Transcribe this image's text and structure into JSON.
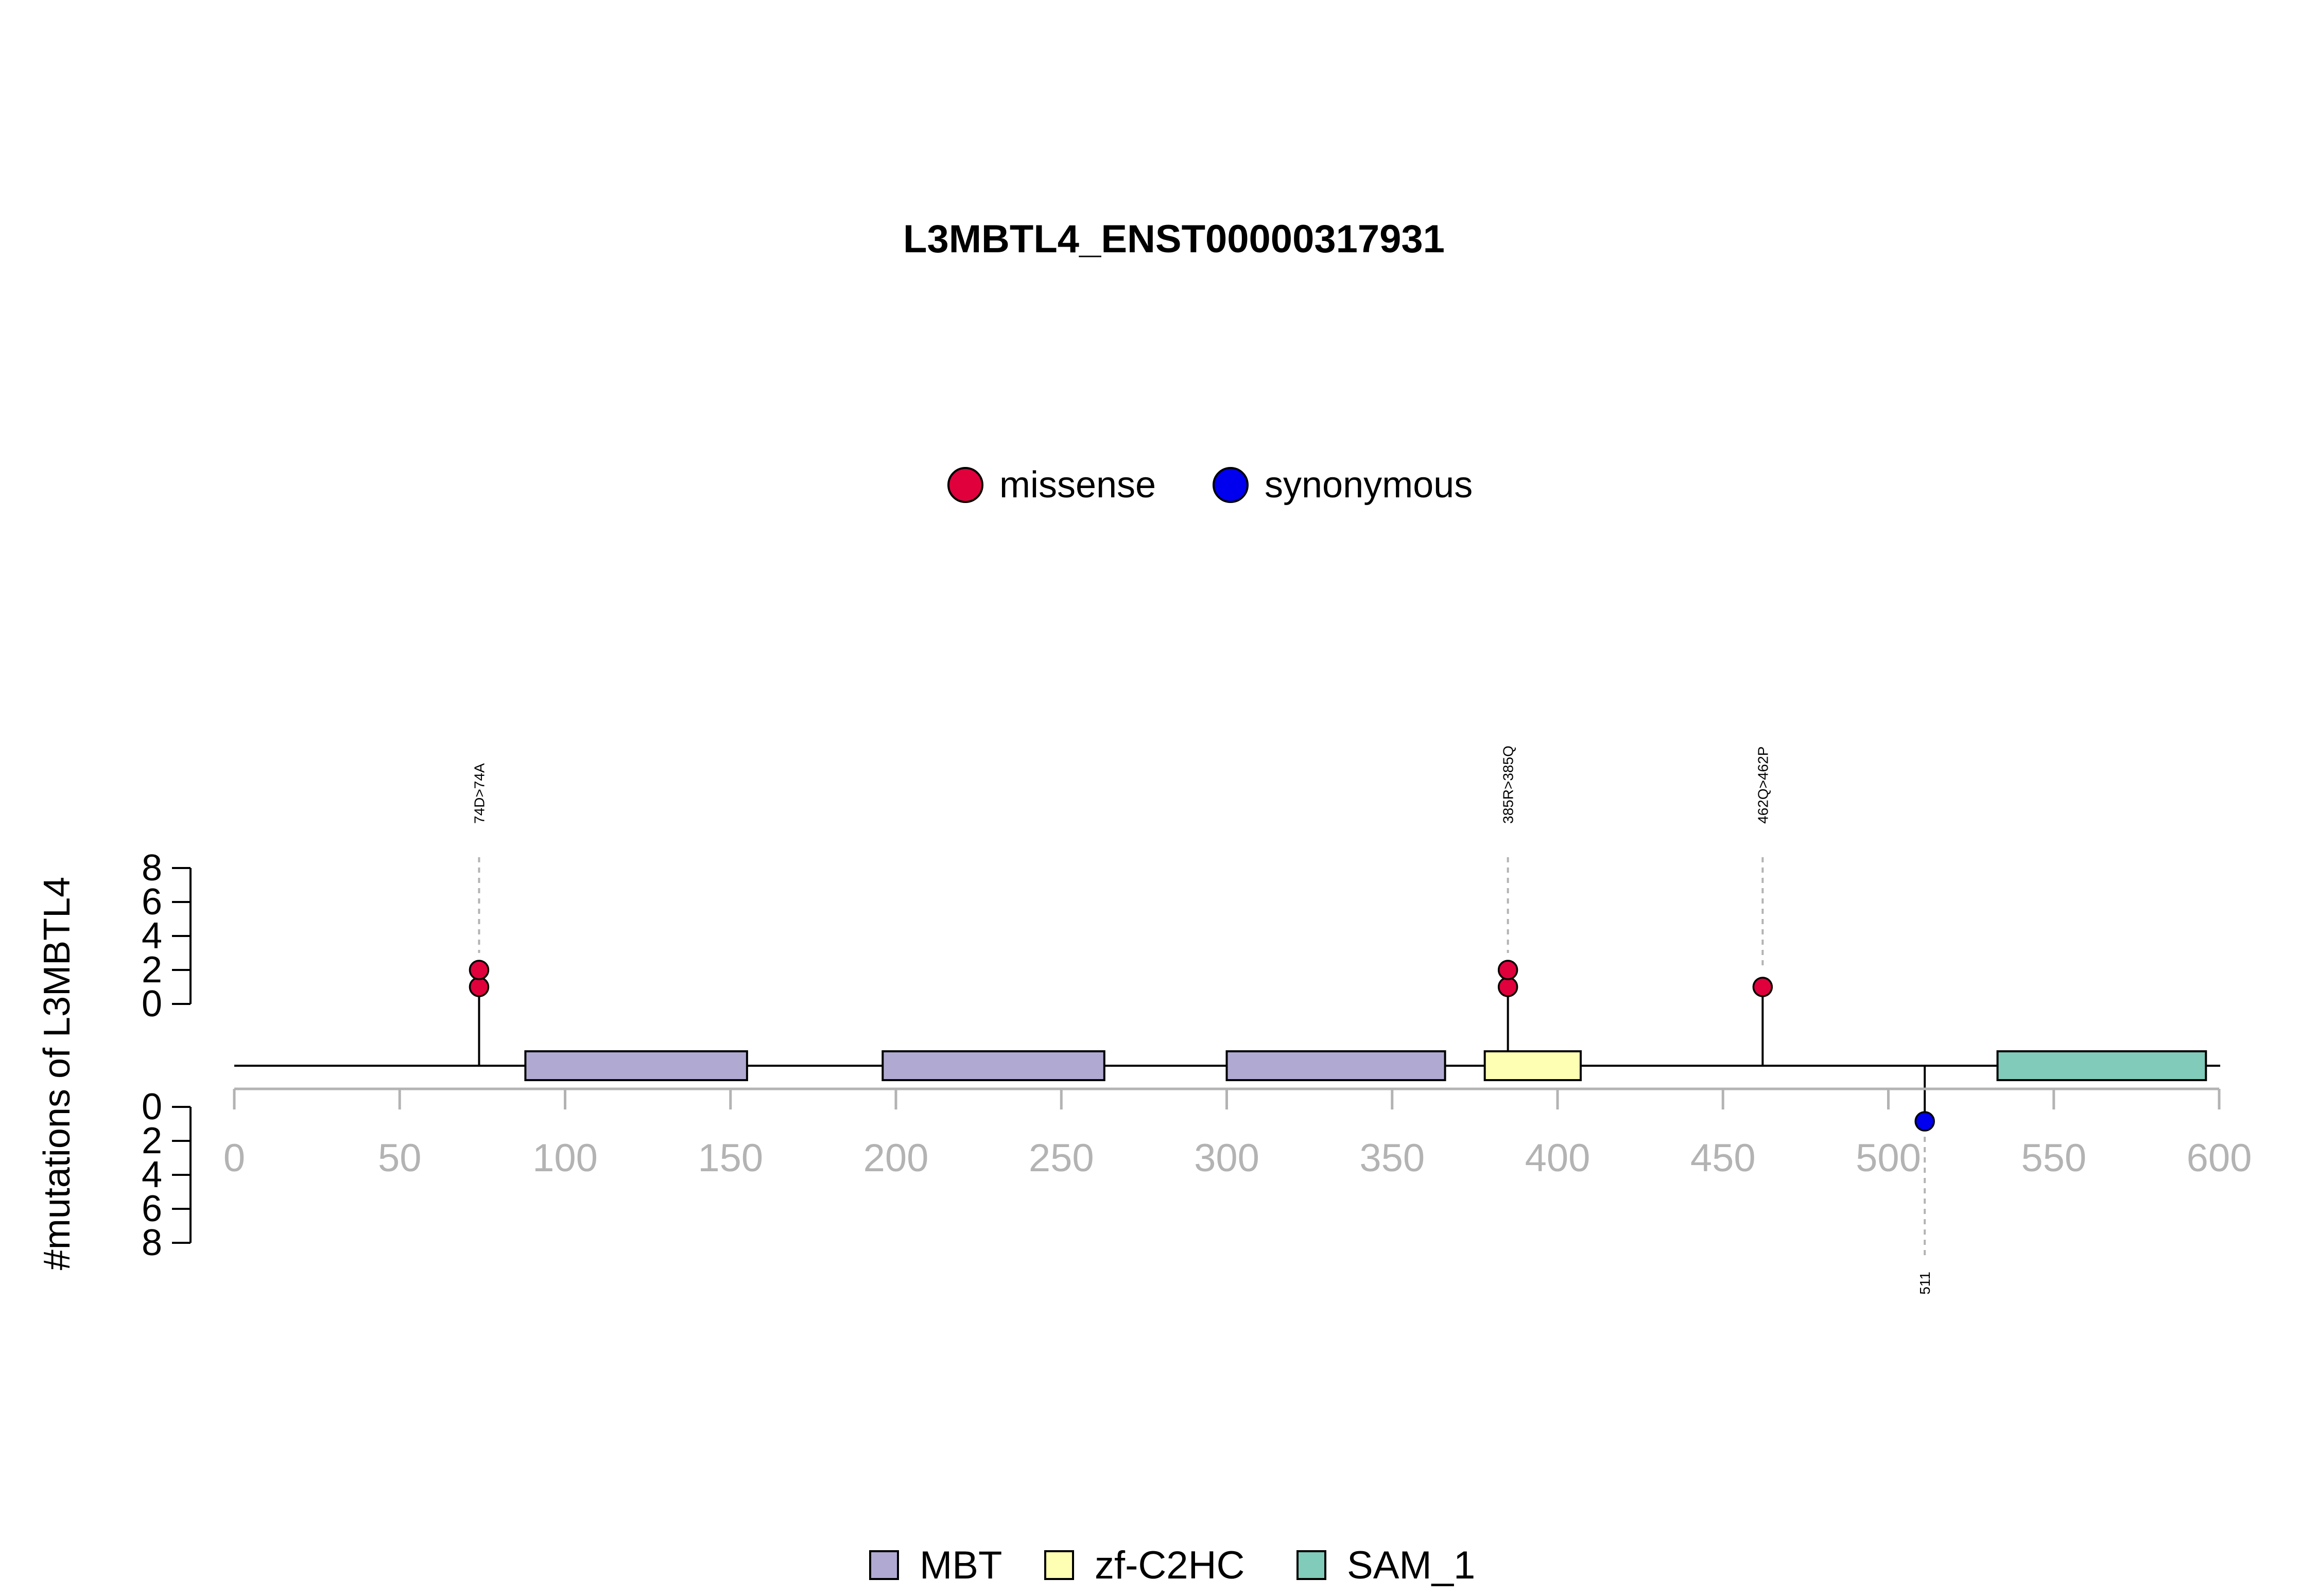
{
  "chart_data": {
    "type": "lollipop",
    "title": "L3MBTL4_ENST00000317931",
    "ylabel": "#mutations of L3MBTL4",
    "xlim": [
      0,
      600
    ],
    "x_ticks": [
      0,
      50,
      100,
      150,
      200,
      250,
      300,
      350,
      400,
      450,
      500,
      550,
      600
    ],
    "y_ticks_top": [
      0,
      2,
      4,
      6,
      8
    ],
    "y_ticks_bottom": [
      0,
      2,
      4,
      6,
      8
    ],
    "legend_top": [
      {
        "name": "missense",
        "color": "#e0003c"
      },
      {
        "name": "synonymous",
        "color": "#0000ee"
      }
    ],
    "legend_bottom": [
      {
        "name": "MBT",
        "color": "#b0aad2"
      },
      {
        "name": "zf-C2HC",
        "color": "#ffffb4"
      },
      {
        "name": "SAM_1",
        "color": "#80cbb9"
      }
    ],
    "protein_length": 600,
    "domains": [
      {
        "name": "MBT",
        "start": 88,
        "end": 155
      },
      {
        "name": "MBT",
        "start": 196,
        "end": 263
      },
      {
        "name": "MBT",
        "start": 300,
        "end": 366
      },
      {
        "name": "zf-C2HC",
        "start": 378,
        "end": 407
      },
      {
        "name": "SAM_1",
        "start": 533,
        "end": 596
      }
    ],
    "mutations": [
      {
        "position": 74,
        "label": "74D>74A",
        "type": "missense",
        "count": 2,
        "side": "top"
      },
      {
        "position": 385,
        "label": "385R>385Q",
        "type": "missense",
        "count": 2,
        "side": "top"
      },
      {
        "position": 462,
        "label": "462Q>462P",
        "type": "missense",
        "count": 1,
        "side": "top"
      },
      {
        "position": 511,
        "label": "511",
        "type": "synonymous",
        "count": 1,
        "side": "bottom"
      }
    ]
  }
}
